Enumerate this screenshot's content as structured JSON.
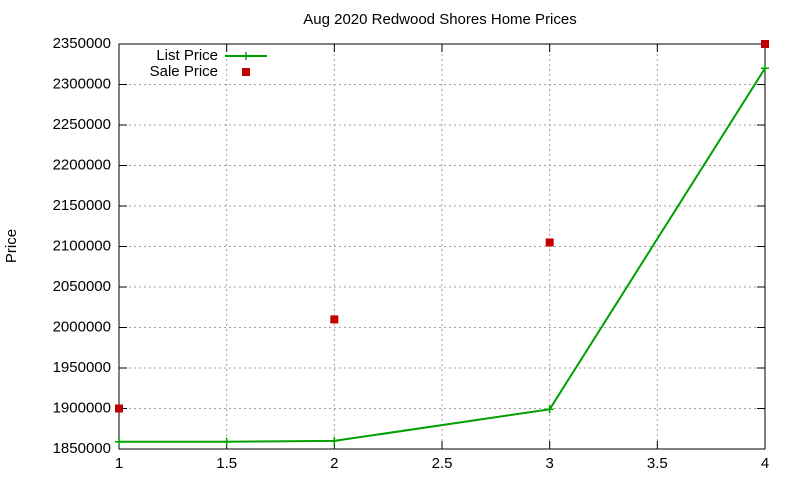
{
  "chart_data": {
    "type": "line",
    "title": "Aug 2020 Redwood Shores Home Prices",
    "y_label": "Price",
    "series": [
      {
        "name": "List Price",
        "color": "#00a000",
        "style": "linespoints",
        "x": [
          1,
          1.5,
          2,
          3,
          4
        ],
        "values": [
          1859000,
          1859000,
          1860000,
          1899000,
          2320000
        ]
      },
      {
        "name": "Sale Price",
        "color": "#c00000",
        "style": "points",
        "x": [
          1,
          2,
          3,
          4
        ],
        "values": [
          1900000,
          2010000,
          2105000,
          2350000
        ]
      }
    ],
    "xlim": [
      1,
      4
    ],
    "xticks": [
      1,
      1.5,
      2,
      2.5,
      3,
      3.5,
      4
    ],
    "ylim": [
      1850000,
      2350000
    ],
    "yticks": [
      1850000,
      1900000,
      1950000,
      2000000,
      2050000,
      2100000,
      2150000,
      2200000,
      2250000,
      2300000,
      2350000
    ],
    "grid": true,
    "legend": "top-left"
  }
}
